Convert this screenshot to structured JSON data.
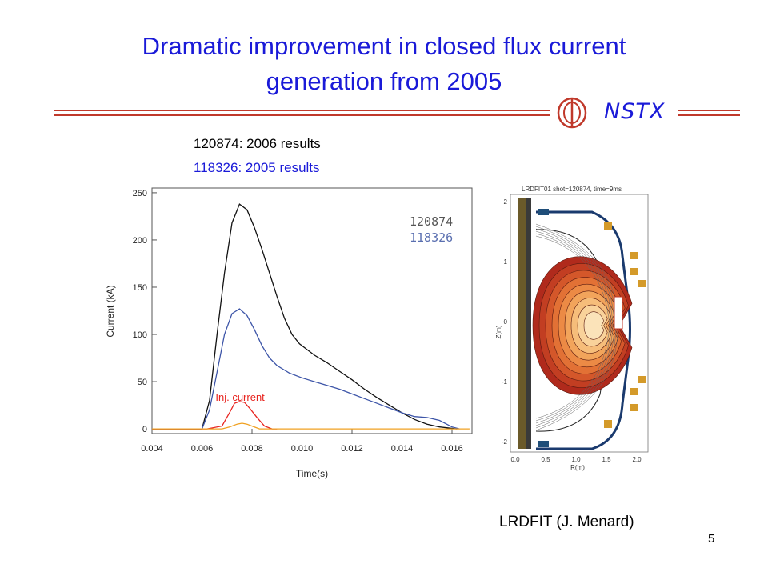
{
  "slide": {
    "title": "Dramatic improvement in closed flux current\ngeneration from 2005",
    "logo_text": "NSTX",
    "shot_lines": [
      {
        "text": "120874: 2006 results",
        "color": "#000000"
      },
      {
        "text": "118326: 2005 results",
        "color": "#1a1ad8"
      }
    ],
    "eq_caption": "LRDFIT (J. Menard)",
    "page_number": "5",
    "colors": {
      "title": "#1a1ad8",
      "rule": "#c0392b",
      "logo": "#c0392b"
    },
    "logo_icon": "nstx-torus-logo"
  },
  "chart_data": {
    "type": "line",
    "xlabel": "Time(s)",
    "ylabel": "Current (kA)",
    "xlim": [
      0.004,
      0.0168
    ],
    "ylim": [
      -5,
      255
    ],
    "xticks": [
      "0.004",
      "0.006",
      "0.008",
      "0.010",
      "0.012",
      "0.014",
      "0.016"
    ],
    "xtick_values": [
      0.004,
      0.006,
      0.008,
      0.01,
      0.012,
      0.014,
      0.016
    ],
    "yticks": [
      "0",
      "50",
      "100",
      "150",
      "200",
      "250"
    ],
    "ytick_values": [
      0,
      50,
      100,
      150,
      200,
      250
    ],
    "annotation": {
      "text": "Inj. current",
      "x": 0.0075,
      "y": 40,
      "color": "#e8241f"
    },
    "legend": {
      "placement": "top-right",
      "entries": [
        {
          "text": "120874",
          "color": "#555555"
        },
        {
          "text": "118326",
          "color": "#5a6fb0"
        }
      ]
    },
    "series": [
      {
        "name": "120874",
        "color": "#111111",
        "x": [
          0.004,
          0.0055,
          0.006,
          0.0063,
          0.0066,
          0.0069,
          0.0072,
          0.0075,
          0.0078,
          0.0081,
          0.0084,
          0.0087,
          0.009,
          0.0093,
          0.0096,
          0.0099,
          0.0105,
          0.011,
          0.0115,
          0.012,
          0.0125,
          0.013,
          0.0135,
          0.014,
          0.0145,
          0.015,
          0.0155,
          0.0162
        ],
        "y": [
          0,
          0,
          0,
          30,
          100,
          165,
          218,
          238,
          232,
          213,
          190,
          165,
          140,
          117,
          100,
          90,
          78,
          70,
          61,
          52,
          42,
          33,
          25,
          17,
          10,
          5,
          2,
          0
        ]
      },
      {
        "name": "118326",
        "color": "#3d55a8",
        "x": [
          0.004,
          0.0055,
          0.006,
          0.0063,
          0.0066,
          0.0069,
          0.0072,
          0.0075,
          0.0078,
          0.0081,
          0.0084,
          0.0087,
          0.009,
          0.0095,
          0.01,
          0.0105,
          0.011,
          0.0115,
          0.012,
          0.0125,
          0.013,
          0.0135,
          0.014,
          0.0145,
          0.015,
          0.0155,
          0.016,
          0.0163
        ],
        "y": [
          0,
          0,
          0,
          20,
          60,
          100,
          122,
          127,
          120,
          105,
          88,
          75,
          67,
          59,
          54,
          50,
          46,
          42,
          37,
          32,
          27,
          22,
          17,
          13,
          12,
          9,
          2,
          0
        ]
      },
      {
        "name": "Inj. current",
        "color": "#e8241f",
        "x": [
          0.004,
          0.0062,
          0.0068,
          0.0071,
          0.0073,
          0.0075,
          0.0077,
          0.0079,
          0.0082,
          0.0085,
          0.0088,
          0.009
        ],
        "y": [
          0,
          0,
          3,
          17,
          27,
          29,
          28,
          22,
          12,
          3,
          0,
          0
        ]
      },
      {
        "name": "",
        "color": "#f0a020",
        "x": [
          0.004,
          0.0068,
          0.0071,
          0.0074,
          0.0076,
          0.0078,
          0.008,
          0.0083,
          0.0167
        ],
        "y": [
          0,
          0,
          2,
          5,
          6,
          5,
          3,
          0,
          0
        ]
      }
    ]
  },
  "eq_plot": {
    "header": "LRDFIT01 shot=120874, time=9ms",
    "xlabel": "R(m)",
    "ylabel": "Z(m)",
    "xticks": [
      "0.0",
      "0.5",
      "1.0",
      "1.5",
      "2.0"
    ],
    "yticks": [
      "2",
      "1",
      "0",
      "-1",
      "-2"
    ],
    "fill_colors": [
      "#b02a1c",
      "#c23e22",
      "#d4572a",
      "#e27135",
      "#ec8a45",
      "#f2a45b",
      "#f6bd7a",
      "#f9d29a",
      "#fbe3b9"
    ]
  }
}
